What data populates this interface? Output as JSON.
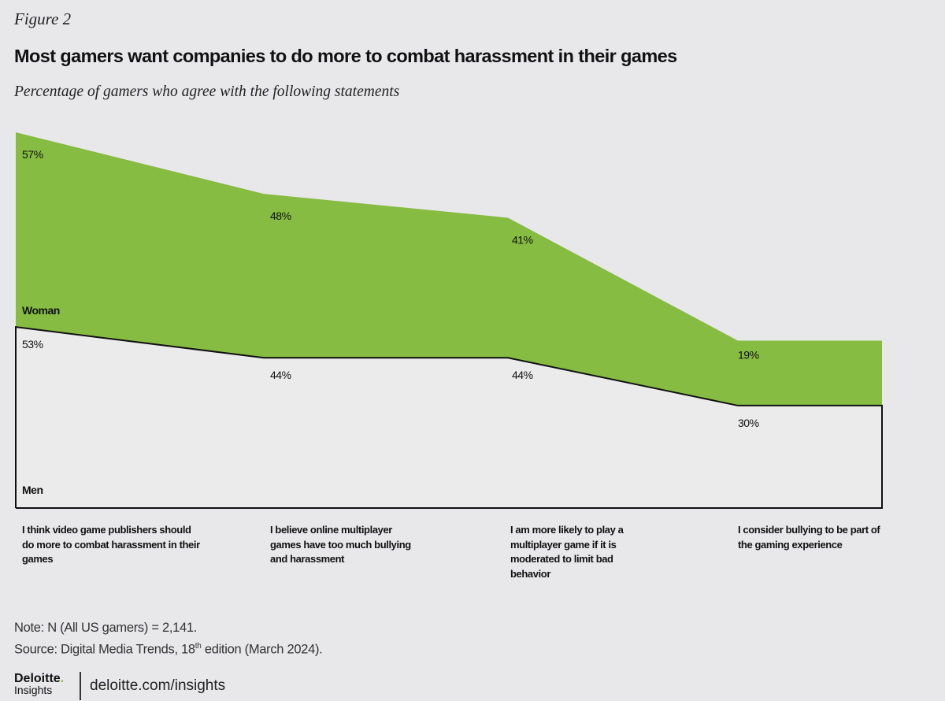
{
  "figure_label": "Figure 2",
  "title": "Most gamers want companies to do more to combat harassment in their games",
  "subtitle": "Percentage of gamers who agree with the following statements",
  "chart_data": {
    "type": "area",
    "stacked": true,
    "categories": [
      "I think video game publishers should do more to combat harassment in their games",
      "I believe online multiplayer games have too much bullying and harassment",
      "I am more likely to play a multiplayer game if it is moderated to limit bad behavior",
      "I consider bullying to be part of the gaming experience"
    ],
    "series": [
      {
        "name": "Men",
        "values": [
          53,
          44,
          44,
          30
        ],
        "labels": [
          "53%",
          "44%",
          "44%",
          "30%"
        ],
        "color": "#ebebeb"
      },
      {
        "name": "Woman",
        "values": [
          57,
          48,
          41,
          19
        ],
        "labels": [
          "57%",
          "48%",
          "41%",
          "19%"
        ],
        "color": "#86bc42"
      }
    ],
    "legend": "inline-left",
    "grid": false
  },
  "note": "Note: N (All US gamers) = 2,141.",
  "source_prefix": "Source: Digital Media Trends, 18",
  "source_sup": "th",
  "source_suffix": " edition (March 2024).",
  "logo": {
    "brand": "Deloitte",
    "sub": "Insights"
  },
  "url": "deloitte.com/insights"
}
